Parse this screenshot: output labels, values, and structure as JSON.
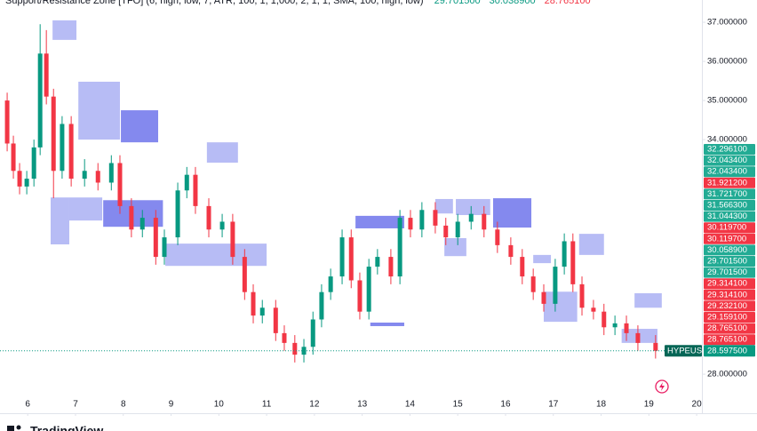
{
  "chart_data": {
    "type": "candlestick",
    "title": "Support/Resistance Zone [TFO] (6, high, low, 7, ATR, 100, 1, 1,000, 2, 1, 1, SMA, 100, high, low)",
    "title_values": [
      {
        "label": "29.701500",
        "color": "#089981"
      },
      {
        "label": "30.038900",
        "color": "#089981"
      },
      {
        "label": "28.765100",
        "color": "#f23645"
      }
    ],
    "symbol": "HYPEUSD",
    "last_price": 28.5975,
    "last_price_label": "28.597500",
    "brand": "TradingView",
    "up_color": "#089981",
    "down_color": "#f23645",
    "xlim": [
      5.42,
      20.11
    ],
    "xticks": [
      6,
      7,
      8,
      9,
      10,
      11,
      12,
      13,
      14,
      15,
      16,
      17,
      18,
      19,
      20
    ],
    "ylim": [
      27.57,
      37.57
    ],
    "yticks": [
      {
        "value": 28,
        "label": "28.000000"
      },
      {
        "value": 34,
        "label": "34.000000"
      },
      {
        "value": 35,
        "label": "35.000000"
      },
      {
        "value": 36,
        "label": "36.000000"
      },
      {
        "value": 37,
        "label": "37.000000"
      }
    ],
    "x": [
      5.57,
      5.7,
      5.83,
      5.98,
      6.13,
      6.26,
      6.39,
      6.54,
      6.72,
      6.91,
      7.19,
      7.47,
      7.75,
      7.93,
      8.17,
      8.4,
      8.68,
      8.86,
      9.14,
      9.33,
      9.51,
      9.79,
      10.07,
      10.29,
      10.54,
      10.72,
      10.91,
      11.19,
      11.37,
      11.59,
      11.78,
      11.97,
      12.15,
      12.34,
      12.58,
      12.77,
      12.95,
      13.14,
      13.32,
      13.6,
      13.79,
      14.01,
      14.25,
      14.53,
      14.75,
      15.0,
      15.28,
      15.55,
      15.83,
      16.11,
      16.35,
      16.58,
      16.8,
      17.04,
      17.23,
      17.41,
      17.6,
      17.84,
      18.06,
      18.29,
      18.53,
      18.77,
      19.14
    ],
    "open": [
      35.0,
      33.9,
      33.2,
      32.8,
      33.0,
      33.8,
      36.2,
      35.1,
      33.2,
      34.4,
      33.0,
      33.2,
      32.9,
      33.4,
      32.3,
      31.7,
      32.0,
      31.0,
      31.5,
      32.7,
      33.1,
      32.3,
      31.7,
      31.9,
      31.0,
      30.1,
      29.5,
      29.7,
      29.05,
      28.8,
      28.5,
      28.7,
      29.4,
      30.1,
      30.5,
      31.5,
      30.4,
      29.6,
      30.75,
      31.0,
      30.5,
      32.0,
      31.7,
      32.2,
      31.8,
      31.5,
      31.9,
      32.1,
      31.7,
      31.3,
      31.0,
      30.5,
      30.1,
      29.8,
      30.75,
      31.4,
      30.3,
      29.7,
      29.6,
      29.2,
      29.3,
      29.05,
      28.8
    ],
    "high": [
      35.2,
      34.1,
      33.4,
      33.2,
      34.0,
      36.95,
      36.8,
      35.3,
      34.6,
      34.6,
      33.5,
      33.4,
      33.6,
      33.6,
      32.5,
      32.2,
      32.2,
      31.7,
      32.9,
      33.3,
      33.3,
      32.5,
      32.1,
      32.1,
      31.2,
      30.3,
      29.9,
      29.9,
      29.25,
      29.0,
      28.9,
      29.6,
      30.3,
      30.7,
      31.7,
      31.7,
      30.6,
      30.95,
      31.2,
      31.2,
      32.2,
      32.2,
      32.4,
      32.4,
      32.0,
      32.1,
      32.3,
      32.3,
      31.9,
      31.5,
      31.2,
      30.7,
      30.3,
      30.95,
      31.6,
      31.6,
      30.5,
      29.9,
      29.8,
      29.5,
      29.5,
      29.25,
      29.0
    ],
    "low": [
      33.7,
      33.0,
      32.6,
      32.6,
      32.8,
      33.6,
      34.9,
      32.5,
      33.0,
      32.8,
      32.8,
      32.7,
      32.7,
      32.1,
      31.5,
      31.5,
      30.8,
      30.8,
      31.3,
      32.5,
      32.1,
      31.5,
      31.5,
      30.8,
      29.9,
      29.3,
      29.3,
      28.85,
      28.6,
      28.3,
      28.3,
      28.5,
      29.2,
      29.9,
      30.3,
      30.2,
      29.4,
      29.4,
      30.55,
      30.3,
      30.3,
      31.5,
      31.5,
      31.6,
      31.3,
      31.3,
      31.7,
      31.5,
      31.1,
      30.8,
      30.3,
      29.9,
      29.6,
      29.6,
      30.55,
      30.1,
      29.5,
      29.4,
      29.0,
      29.0,
      28.85,
      28.6,
      28.4
    ],
    "close": [
      33.9,
      33.2,
      32.8,
      33.0,
      33.8,
      36.2,
      35.1,
      33.2,
      34.4,
      33.0,
      33.2,
      32.9,
      33.4,
      32.3,
      31.7,
      32.0,
      31.0,
      31.5,
      32.7,
      33.1,
      32.3,
      31.7,
      31.9,
      31.0,
      30.1,
      29.5,
      29.7,
      29.05,
      28.8,
      28.5,
      28.7,
      29.4,
      30.1,
      30.5,
      31.5,
      30.4,
      29.6,
      30.75,
      31.0,
      30.5,
      32.0,
      31.7,
      32.2,
      31.8,
      31.5,
      31.9,
      32.1,
      31.7,
      31.3,
      31.0,
      30.5,
      30.1,
      29.8,
      30.75,
      31.4,
      30.3,
      29.7,
      29.6,
      29.2,
      29.3,
      29.05,
      28.8,
      28.5975
    ],
    "zones": [
      {
        "x": [
          6.52,
          7.02
        ],
        "y": [
          36.55,
          37.05
        ],
        "color": "#9fa6f2"
      },
      {
        "x": [
          7.06,
          7.93
        ],
        "y": [
          34.0,
          35.48
        ],
        "color": "#9fa6f2"
      },
      {
        "x": [
          7.95,
          8.73
        ],
        "y": [
          33.93,
          34.75
        ],
        "color": "#5b62e8"
      },
      {
        "x": [
          9.75,
          10.4
        ],
        "y": [
          33.41,
          33.93
        ],
        "color": "#9fa6f2"
      },
      {
        "x": [
          6.48,
          6.87
        ],
        "y": [
          31.32,
          32.52
        ],
        "color": "#9fa6f2"
      },
      {
        "x": [
          6.87,
          7.56
        ],
        "y": [
          31.93,
          32.52
        ],
        "color": "#9fa6f2"
      },
      {
        "x": [
          7.58,
          8.83
        ],
        "y": [
          31.77,
          32.45
        ],
        "color": "#5b62e8"
      },
      {
        "x": [
          8.88,
          11.0
        ],
        "y": [
          30.77,
          31.34
        ],
        "color": "#9fa6f2"
      },
      {
        "x": [
          12.86,
          13.88
        ],
        "y": [
          31.73,
          32.05
        ],
        "color": "#5b62e8"
      },
      {
        "x": [
          14.53,
          14.9
        ],
        "y": [
          32.11,
          32.48
        ],
        "color": "#9fa6f2"
      },
      {
        "x": [
          14.96,
          15.68
        ],
        "y": [
          32.07,
          32.48
        ],
        "color": "#9fa6f2"
      },
      {
        "x": [
          15.74,
          16.54
        ],
        "y": [
          31.75,
          32.5
        ],
        "color": "#5b62e8"
      },
      {
        "x": [
          14.72,
          15.18
        ],
        "y": [
          31.02,
          31.48
        ],
        "color": "#9fa6f2"
      },
      {
        "x": [
          16.58,
          16.95
        ],
        "y": [
          30.84,
          31.05
        ],
        "color": "#9fa6f2"
      },
      {
        "x": [
          17.54,
          18.06
        ],
        "y": [
          31.05,
          31.59
        ],
        "color": "#9fa6f2"
      },
      {
        "x": [
          16.8,
          17.5
        ],
        "y": [
          29.34,
          30.11
        ],
        "color": "#9fa6f2"
      },
      {
        "x": [
          18.7,
          19.27
        ],
        "y": [
          29.7,
          30.07
        ],
        "color": "#9fa6f2"
      },
      {
        "x": [
          18.43,
          19.18
        ],
        "y": [
          28.8,
          29.16
        ],
        "color": "#9fa6f2"
      },
      {
        "x": [
          13.17,
          13.88
        ],
        "y": [
          29.23,
          29.32
        ],
        "color": "#5b62e8"
      }
    ],
    "price_tags": [
      {
        "label": "32.296100",
        "color": "#22ab94"
      },
      {
        "label": "32.043400",
        "color": "#22ab94"
      },
      {
        "label": "32.043400",
        "color": "#22ab94"
      },
      {
        "label": "31.921200",
        "color": "#f23645"
      },
      {
        "label": "31.721700",
        "color": "#22ab94"
      },
      {
        "label": "31.566300",
        "color": "#22ab94"
      },
      {
        "label": "31.044300",
        "color": "#22ab94"
      },
      {
        "label": "30.119700",
        "color": "#f23645"
      },
      {
        "label": "30.119700",
        "color": "#f23645"
      },
      {
        "label": "30.058900",
        "color": "#22ab94"
      },
      {
        "label": "29.701500",
        "color": "#22ab94"
      },
      {
        "label": "29.701500",
        "color": "#22ab94"
      },
      {
        "label": "29.314100",
        "color": "#f23645"
      },
      {
        "label": "29.314100",
        "color": "#f23645"
      },
      {
        "label": "29.232100",
        "color": "#f23645"
      },
      {
        "label": "29.159100",
        "color": "#f23645"
      },
      {
        "label": "28.765100",
        "color": "#f23645"
      },
      {
        "label": "28.765100",
        "color": "#f23645"
      }
    ]
  }
}
